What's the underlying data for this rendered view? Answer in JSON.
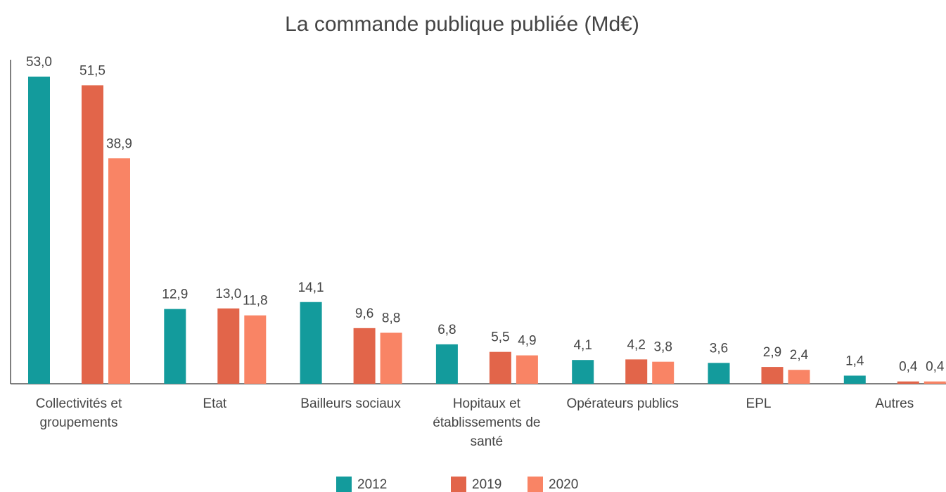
{
  "chart_data": {
    "type": "bar",
    "title": "La commande publique publiée (Md€)",
    "categories": [
      "Collectivités et groupements",
      "Etat",
      "Bailleurs sociaux",
      "Hopitaux et établissements de santé",
      "Opérateurs publics",
      "EPL",
      "Autres"
    ],
    "series": [
      {
        "name": "2012",
        "color": "#139b9c",
        "values": [
          53.0,
          12.9,
          14.1,
          6.8,
          4.1,
          3.6,
          1.4
        ],
        "value_labels": [
          "53,0",
          "12,9",
          "14,1",
          "6,8",
          "4,1",
          "3,6",
          "1,4"
        ]
      },
      {
        "name": "2019",
        "color": "#e2654a",
        "values": [
          51.5,
          13.0,
          9.6,
          5.5,
          4.2,
          2.9,
          0.4
        ],
        "value_labels": [
          "51,5",
          "13,0",
          "9,6",
          "5,5",
          "4,2",
          "2,9",
          "0,4"
        ]
      },
      {
        "name": "2020",
        "color": "#f98465",
        "values": [
          38.9,
          11.8,
          8.8,
          4.9,
          3.8,
          2.4,
          0.4
        ],
        "value_labels": [
          "38,9",
          "11,8",
          "8,8",
          "4,9",
          "3,8",
          "2,4",
          "0,4"
        ]
      }
    ],
    "legend": "bottom"
  }
}
